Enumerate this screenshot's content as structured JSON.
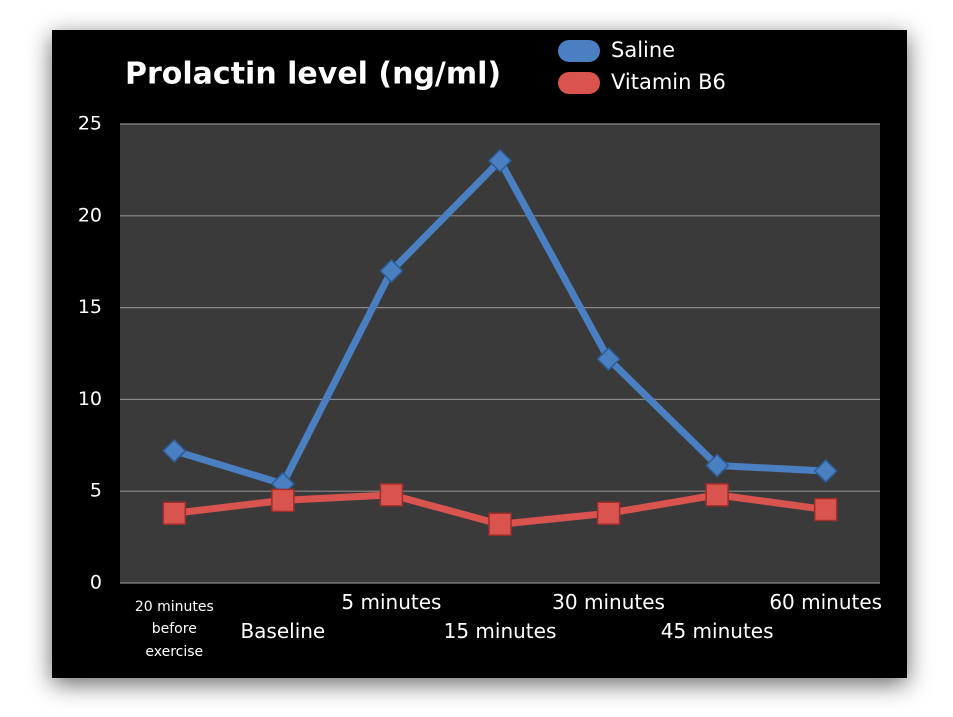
{
  "chart_data": {
    "type": "line",
    "title": "Prolactin level (ng/ml)",
    "categories": [
      "20 minutes before exercise",
      "Baseline",
      "5 minutes",
      "15 minutes",
      "30 minutes",
      "45 minutes",
      "60 minutes"
    ],
    "series": [
      {
        "name": "Saline",
        "color": "#4a7fc1",
        "values": [
          7.2,
          5.4,
          17,
          23,
          12.2,
          6.4,
          6.1
        ]
      },
      {
        "name": "Vitamin B6",
        "color": "#d9534f",
        "values": [
          3.8,
          4.5,
          4.8,
          3.2,
          3.8,
          4.8,
          4.0
        ]
      }
    ],
    "ylim": [
      0,
      25
    ],
    "yticks": [
      0,
      5,
      10,
      15,
      20,
      25
    ],
    "grid": true
  }
}
